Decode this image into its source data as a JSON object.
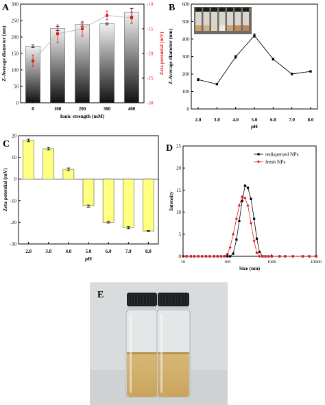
{
  "panels": {
    "A": {
      "label": "A"
    },
    "B": {
      "label": "B"
    },
    "C": {
      "label": "C"
    },
    "D": {
      "label": "D"
    },
    "E": {
      "label": "E"
    }
  },
  "colors": {
    "bar_dark": "#111111",
    "bar_light": "#f2f2f2",
    "zeta_red": "#e31a1c",
    "line_gray": "#bdbdbd",
    "panel_c_bar": "#ffff80",
    "redispersed": "#000000",
    "fresh": "#e31a1c",
    "photo_bg": "#d9dcdc",
    "liquid": "#c9a45e",
    "cap": "#1b1d20"
  },
  "chart_data": [
    {
      "panel": "A",
      "type": "bar",
      "xlabel": "Ionic strength (mM)",
      "ylabel": "Z-Average diameter (nm)",
      "y2label": "Zeta potential (mV)",
      "categories": [
        "0",
        "100",
        "200",
        "300",
        "400"
      ],
      "ylim": [
        0,
        300
      ],
      "yticks": [
        "0",
        "50",
        "100",
        "150",
        "200",
        "250",
        "300"
      ],
      "y2lim": [
        -30,
        -10
      ],
      "y2ticks": [
        "-10",
        "-15",
        "-20",
        "-25",
        "-30"
      ],
      "series": [
        {
          "values": [
            172,
            226,
            238,
            240,
            275
          ],
          "errors": [
            4,
            6,
            5,
            3,
            12
          ]
        },
        {
          "axis": "right",
          "values": [
            -21.5,
            -16,
            -15,
            -12.3,
            -12.8
          ],
          "errors": [
            1.2,
            1.8,
            1.5,
            0.9,
            1.1
          ]
        }
      ],
      "grid": false
    },
    {
      "panel": "B",
      "type": "line",
      "xlabel": "pH",
      "ylabel": "Z-Average diameter (nm)",
      "x": [
        2.0,
        3.0,
        4.0,
        5.0,
        6.0,
        7.0,
        8.0
      ],
      "xticks": [
        "2.0",
        "3.0",
        "4.0",
        "5.0",
        "6.0",
        "7.0",
        "8.0"
      ],
      "ylim": [
        0,
        600
      ],
      "yticks": [
        "0",
        "100",
        "200",
        "300",
        "400",
        "500",
        "600"
      ],
      "series": [
        {
          "values": [
            168,
            142,
            298,
            420,
            285,
            200,
            215
          ],
          "errors": [
            6,
            4,
            8,
            9,
            6,
            5,
            4
          ]
        }
      ],
      "grid": false
    },
    {
      "panel": "C",
      "type": "bar",
      "xlabel": "pH",
      "ylabel": "Zeta potential (mV)",
      "categories": [
        "2.0",
        "3.0",
        "4.0",
        "5.0",
        "6.0",
        "7.0",
        "8.0"
      ],
      "ylim": [
        -30,
        20
      ],
      "yticks": [
        "20",
        "10",
        "0",
        "-10",
        "-20",
        "-30"
      ],
      "series": [
        {
          "values": [
            17.8,
            14,
            4.5,
            -12.5,
            -20,
            -22.5,
            -24
          ],
          "errors": [
            0.6,
            0.6,
            0.6,
            0.5,
            0.4,
            0.5,
            0.2
          ]
        }
      ],
      "grid": false
    },
    {
      "panel": "D",
      "type": "line",
      "xlabel": "Size (nm)",
      "ylabel": "Intensity",
      "xscale": "log",
      "xlim": [
        10,
        10000
      ],
      "xticks": [
        "10",
        "100",
        "1000",
        "10000"
      ],
      "ylim": [
        0,
        25
      ],
      "yticks": [
        "0",
        "5",
        "10",
        "15",
        "20",
        "25"
      ],
      "legend": "top-right",
      "series": [
        {
          "name": "redispersed NPs",
          "x": [
            10,
            12,
            15,
            18,
            22,
            27,
            33,
            40,
            50,
            60,
            72,
            85,
            100,
            115,
            135,
            160,
            185,
            215,
            250,
            290,
            340,
            400,
            460,
            530,
            620,
            720,
            850,
            1000,
            1500,
            2000,
            3000,
            5000,
            7000,
            10000
          ],
          "values": [
            0,
            0,
            0,
            0,
            0,
            0,
            0,
            0,
            0,
            0,
            0,
            0,
            0,
            0,
            0.6,
            3.8,
            8,
            12.5,
            16,
            15.5,
            13,
            8.5,
            4,
            1,
            0,
            0,
            0,
            0,
            0,
            0,
            0,
            0,
            0,
            0
          ]
        },
        {
          "name": "fresh NPs",
          "x": [
            10,
            12,
            15,
            18,
            22,
            27,
            33,
            40,
            50,
            60,
            72,
            85,
            100,
            115,
            135,
            160,
            185,
            215,
            250,
            290,
            340,
            400,
            460,
            530,
            620,
            720,
            850,
            1000,
            1500,
            2000,
            3000,
            5000,
            7000,
            10000
          ],
          "values": [
            0,
            0,
            0,
            0,
            0,
            0,
            0,
            0,
            0,
            0,
            0,
            0,
            0.5,
            2,
            5,
            8.5,
            11.5,
            13.5,
            13.2,
            11.5,
            7.5,
            3.5,
            0.8,
            0,
            0,
            0,
            0,
            0,
            0,
            0,
            0,
            0,
            0,
            0
          ]
        }
      ],
      "grid": false
    }
  ]
}
